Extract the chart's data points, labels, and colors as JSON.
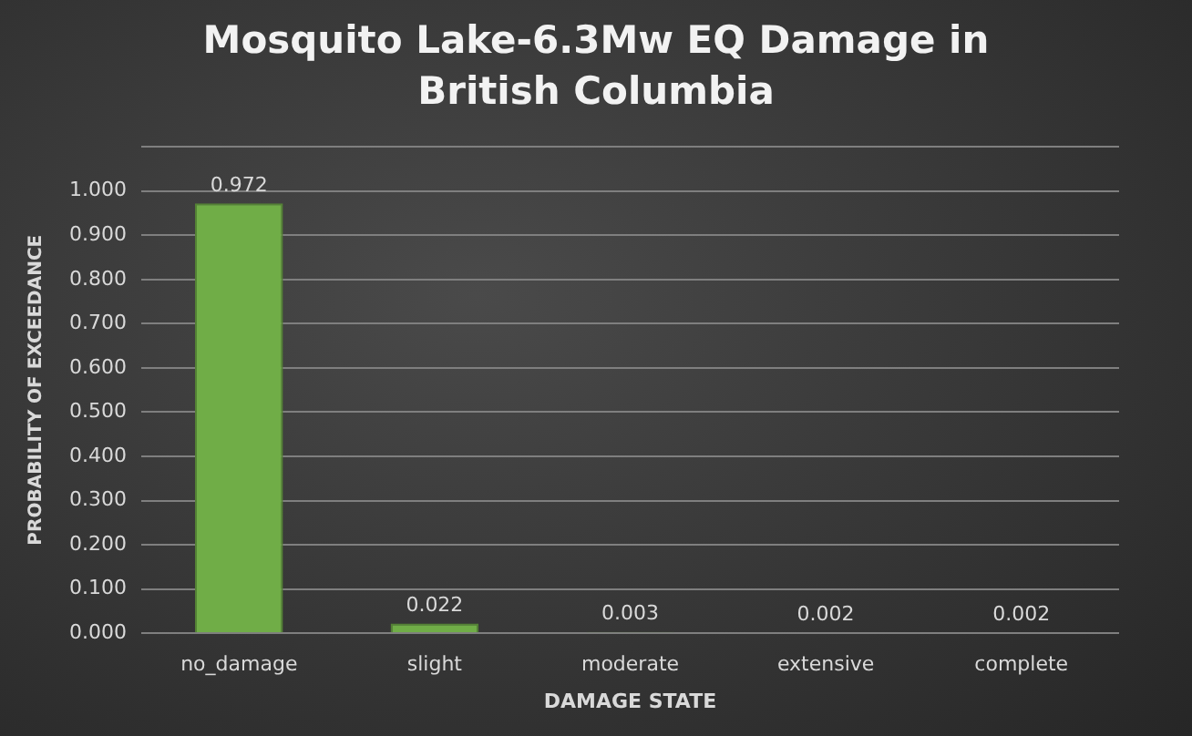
{
  "chart_data": {
    "type": "bar",
    "title": "Mosquito Lake-6.3Mw EQ Damage in British Columbia",
    "xlabel": "DAMAGE STATE",
    "ylabel": "PROBABILITY OF EXCEEDANCE",
    "categories": [
      "no_damage",
      "slight",
      "moderate",
      "extensive",
      "complete"
    ],
    "values": [
      0.972,
      0.022,
      0.003,
      0.002,
      0.002
    ],
    "color": "#70ad47",
    "ylim": [
      0,
      1.1
    ],
    "yticks": [
      {
        "value": 0,
        "label": "0.000"
      },
      {
        "value": 0.1,
        "label": "0.100"
      },
      {
        "value": 0.2,
        "label": "0.200"
      },
      {
        "value": 0.3,
        "label": "0.300"
      },
      {
        "value": 0.4,
        "label": "0.400"
      },
      {
        "value": 0.5,
        "label": "0.500"
      },
      {
        "value": 0.6,
        "label": "0.600"
      },
      {
        "value": 0.7,
        "label": "0.700"
      },
      {
        "value": 0.8,
        "label": "0.800"
      },
      {
        "value": 0.9,
        "label": "0.900"
      },
      {
        "value": 1,
        "label": "1.000"
      },
      {
        "value": 1.1,
        "label": null
      }
    ],
    "grid": "y",
    "data_labels": true,
    "legend": false
  }
}
